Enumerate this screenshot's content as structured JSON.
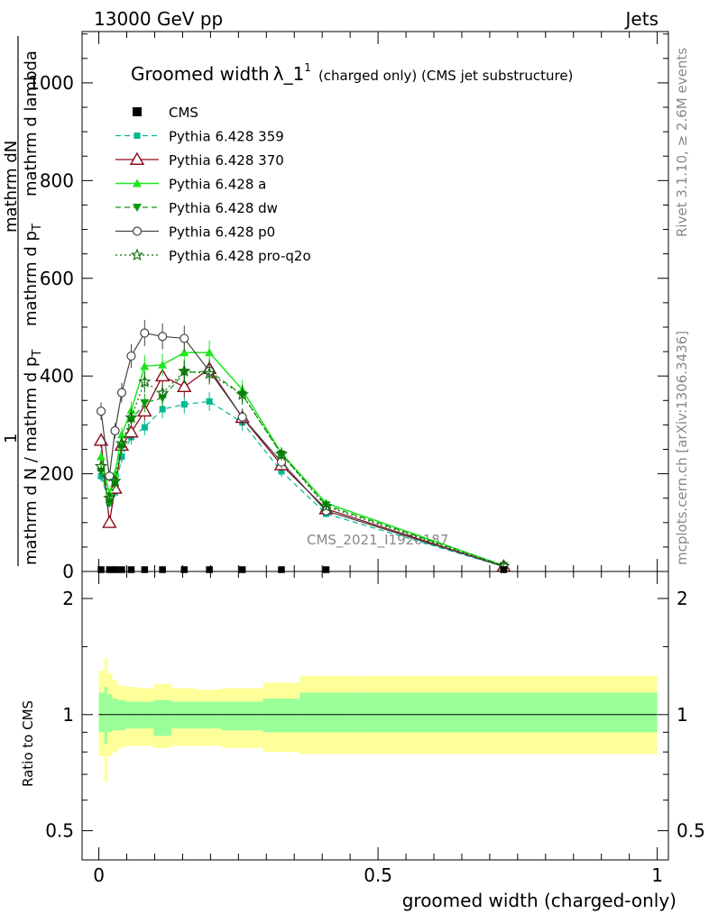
{
  "header": {
    "left": "13000 GeV pp",
    "right": "Jets"
  },
  "side_labels": {
    "rivet": "Rivet 3.1.10, ≥ 2.6M events",
    "mcplots": "mcplots.cern.ch [arXiv:1306.3436]"
  },
  "watermark": "CMS_2021_I1920187",
  "main_title": {
    "part1": "Groomed width",
    "lambda": "λ_1",
    "sup": "1",
    "part2": "(charged only) (CMS jet substructure)"
  },
  "ylabel_top": {
    "num_l1": "1",
    "num_l2": "mathrm dN",
    "den_l1": "mathrm d N / mathrm d p",
    "den_l1_sub": "T",
    "den_l2": "mathrm d p",
    "den_l2_sub": "T",
    "den_l3": "mathrm d lambda"
  },
  "ylabel_bottom": "Ratio to CMS",
  "xlabel": "groomed width (charged-only)",
  "colors": {
    "cms": "#000000",
    "p359": "#00b894",
    "p370": "#8b0a1a",
    "pa": "#1ee61e",
    "pdw": "#0a9a0a",
    "pp0": "#444444",
    "pq2o": "#0a6b0a",
    "band_yellow": "#ffff99",
    "band_green": "#99ff99"
  },
  "chart_data": [
    {
      "type": "line",
      "xlim": [
        -0.03,
        1.02
      ],
      "ylim": [
        0,
        1105
      ],
      "yticks": [
        0,
        200,
        400,
        600,
        800,
        1000
      ],
      "ytick_labels": [
        "0",
        "200",
        "400",
        "600",
        "800",
        "1000"
      ],
      "grid": false,
      "legend_position": "top-left",
      "x": [
        0.004,
        0.019,
        0.029,
        0.041,
        0.058,
        0.082,
        0.114,
        0.153,
        0.198,
        0.257,
        0.327,
        0.407,
        0.725
      ],
      "series": [
        {
          "name": "CMS",
          "marker": "square",
          "style": "none",
          "values": [
            1,
            1,
            1,
            1,
            1,
            1,
            1,
            1,
            1,
            1,
            1,
            1,
            1
          ]
        },
        {
          "name": "Pythia 6.428 359",
          "marker": "small-square",
          "style": "dashed",
          "values": [
            195,
            140,
            162,
            235,
            275,
            295,
            332,
            342,
            348,
            305,
            205,
            118,
            10
          ]
        },
        {
          "name": "Pythia 6.428 370",
          "marker": "open-triangle",
          "style": "solid",
          "values": [
            268,
            100,
            170,
            258,
            285,
            328,
            400,
            378,
            415,
            315,
            218,
            128,
            10
          ]
        },
        {
          "name": "Pythia 6.428 a",
          "marker": "filled-triangle",
          "style": "solid",
          "values": [
            235,
            160,
            200,
            280,
            330,
            420,
            423,
            448,
            448,
            372,
            242,
            140,
            12
          ]
        },
        {
          "name": "Pythia 6.428 dw",
          "marker": "filled-triangle-down",
          "style": "dashed",
          "values": [
            205,
            140,
            180,
            255,
            310,
            345,
            355,
            407,
            410,
            362,
            240,
            136,
            12
          ]
        },
        {
          "name": "Pythia 6.428 p0",
          "marker": "open-circle",
          "style": "solid",
          "values": [
            328,
            195,
            288,
            366,
            441,
            488,
            481,
            477,
            410,
            316,
            224,
            124,
            10
          ]
        },
        {
          "name": "Pythia 6.428 pro-q2o",
          "marker": "star",
          "style": "dotted",
          "values": [
            215,
            150,
            185,
            262,
            315,
            388,
            365,
            410,
            405,
            362,
            240,
            133,
            11
          ]
        }
      ]
    },
    {
      "type": "area",
      "xlim": [
        -0.03,
        1.02
      ],
      "ylim": [
        0.42,
        2.35
      ],
      "ylog": true,
      "yticks": [
        0.5,
        1,
        2
      ],
      "ytick_labels": [
        "0.5",
        "1",
        "2"
      ],
      "xticks": [
        0,
        0.5,
        1
      ],
      "xtick_labels": [
        "0",
        "0.5",
        "1"
      ],
      "edges": [
        0.0,
        0.01,
        0.015,
        0.024,
        0.034,
        0.048,
        0.068,
        0.098,
        0.13,
        0.176,
        0.22,
        0.294,
        0.36,
        0.454,
        1.0
      ],
      "yellow_low": [
        0.78,
        0.67,
        0.78,
        0.8,
        0.82,
        0.83,
        0.83,
        0.82,
        0.83,
        0.83,
        0.82,
        0.8,
        0.79,
        0.79
      ],
      "yellow_high": [
        1.3,
        1.4,
        1.28,
        1.23,
        1.19,
        1.18,
        1.17,
        1.2,
        1.17,
        1.16,
        1.17,
        1.21,
        1.26,
        1.26
      ],
      "green_low": [
        0.9,
        0.84,
        0.9,
        0.91,
        0.91,
        0.92,
        0.92,
        0.88,
        0.92,
        0.92,
        0.91,
        0.9,
        0.9,
        0.9
      ],
      "green_high": [
        1.14,
        1.18,
        1.13,
        1.1,
        1.09,
        1.08,
        1.08,
        1.09,
        1.08,
        1.08,
        1.08,
        1.1,
        1.14,
        1.14
      ],
      "reference": 1
    }
  ]
}
